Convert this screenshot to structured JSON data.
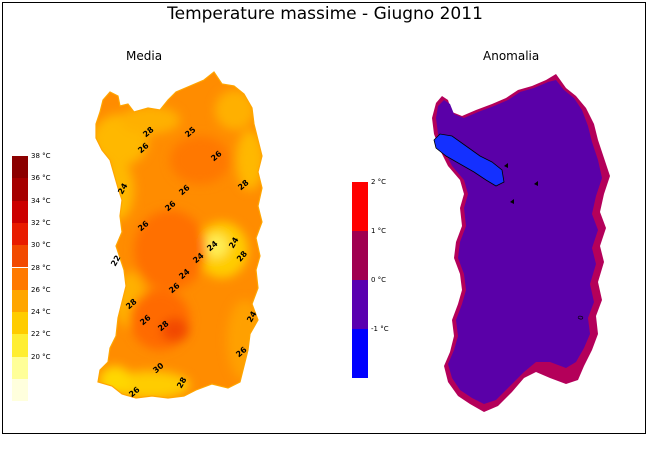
{
  "title": "Temperature massime - Giugno 2011",
  "panels": {
    "media": {
      "label": "Media",
      "legend": {
        "unit": "°C",
        "entries": [
          {
            "value": 38,
            "label": "38 °C",
            "color": "#8b0000"
          },
          {
            "value": 36,
            "label": "36 °C",
            "color": "#a50000"
          },
          {
            "value": 34,
            "label": "34 °C",
            "color": "#cc0000"
          },
          {
            "value": 32,
            "label": "32 °C",
            "color": "#e81c00"
          },
          {
            "value": 30,
            "label": "30 °C",
            "color": "#f24a00"
          },
          {
            "value": 28,
            "label": "28 °C",
            "color": "#ff7a00"
          },
          {
            "value": 26,
            "label": "26 °C",
            "color": "#ffa500"
          },
          {
            "value": 24,
            "label": "24 °C",
            "color": "#ffcc00"
          },
          {
            "value": 22,
            "label": "22 °C",
            "color": "#ffee33"
          },
          {
            "value": 20,
            "label": "20 °C",
            "color": "#ffff99"
          },
          {
            "value": 18,
            "label": "",
            "color": "#ffffdd"
          }
        ]
      },
      "contour_labels": [
        "28",
        "26",
        "25",
        "26",
        "28",
        "26",
        "24",
        "26",
        "26",
        "24",
        "24",
        "22",
        "24",
        "26",
        "28",
        "28",
        "26",
        "28",
        "26",
        "30",
        "24",
        "28",
        "26",
        "24"
      ]
    },
    "anomalia": {
      "label": "Anomalia",
      "legend": {
        "unit": "°C",
        "entries": [
          {
            "value": 2,
            "label": "2 °C",
            "color": "#ff0000"
          },
          {
            "value": 1,
            "label": "1 °C",
            "color": "#a00050"
          },
          {
            "value": 0,
            "label": "0 °C",
            "color": "#5a00b0"
          },
          {
            "value": -1,
            "label": "-1 °C",
            "color": "#0000ff"
          }
        ]
      },
      "contour_labels": [
        "0"
      ]
    }
  },
  "colors": {
    "anomaly_main": "#5a00a8",
    "anomaly_coast": "#b4005a",
    "anomaly_cold": "#1430ff",
    "media_base": "#ff8c00"
  }
}
